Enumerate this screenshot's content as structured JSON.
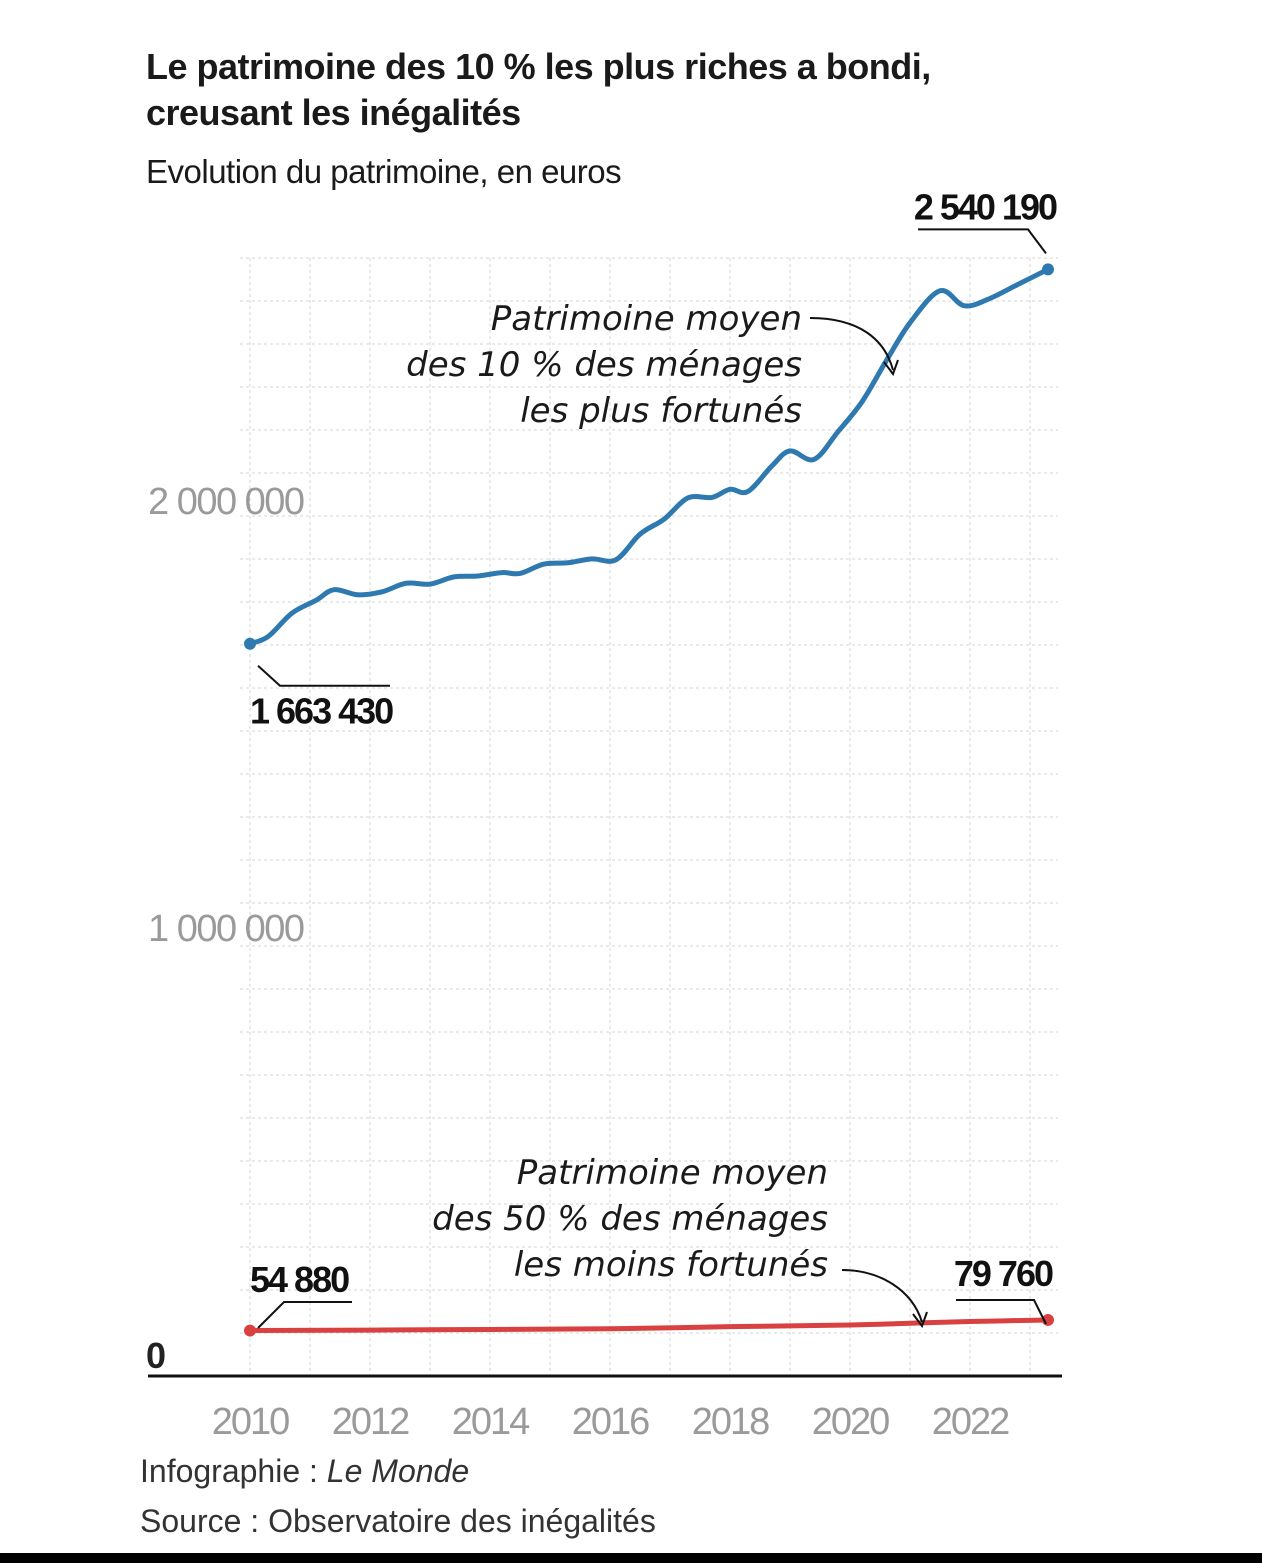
{
  "header": {
    "title_line1": "Le patrimoine des 10 % les plus riches a bondi,",
    "title_line2": "creusant les inégalités",
    "subtitle": "Evolution du patrimoine, en euros"
  },
  "footer": {
    "credit_prefix": "Infographie : ",
    "credit_name": "Le Monde",
    "source": "Source : Observatoire des inégalités"
  },
  "colors": {
    "top10": "#2e7ab0",
    "bottom50": "#d94141",
    "grid": "#d6d6d6",
    "axis_labels": "#9a9a9a"
  },
  "chart_data": {
    "type": "line",
    "title": "Le patrimoine des 10 % les plus riches a bondi, creusant les inégalités",
    "subtitle": "Evolution du patrimoine, en euros",
    "x_range": [
      2010,
      2023.3
    ],
    "y_range": [
      0,
      2700000
    ],
    "grid": true,
    "y_ticks": [
      {
        "value": 0,
        "label": "0"
      },
      {
        "value": 1000000,
        "label": "1 000 000"
      },
      {
        "value": 2000000,
        "label": "2 000 000"
      }
    ],
    "x_ticks": [
      {
        "value": 2010,
        "label": "2010"
      },
      {
        "value": 2012,
        "label": "2012"
      },
      {
        "value": 2014,
        "label": "2014"
      },
      {
        "value": 2016,
        "label": "2016"
      },
      {
        "value": 2018,
        "label": "2018"
      },
      {
        "value": 2020,
        "label": "2020"
      },
      {
        "value": 2022,
        "label": "2022"
      }
    ],
    "series": [
      {
        "id": "top10",
        "label_lines": [
          "Patrimoine moyen",
          "des 10 % des ménages",
          "les plus fortunés"
        ],
        "start_label": "1 663 430",
        "end_label": "2 540 190",
        "points": [
          [
            2010.0,
            1663430
          ],
          [
            2010.3,
            1680000
          ],
          [
            2010.7,
            1735000
          ],
          [
            2011.1,
            1765000
          ],
          [
            2011.4,
            1790000
          ],
          [
            2011.8,
            1778000
          ],
          [
            2012.2,
            1785000
          ],
          [
            2012.6,
            1805000
          ],
          [
            2013.0,
            1803000
          ],
          [
            2013.4,
            1820000
          ],
          [
            2013.8,
            1822000
          ],
          [
            2014.2,
            1830000
          ],
          [
            2014.5,
            1828000
          ],
          [
            2014.9,
            1850000
          ],
          [
            2015.3,
            1853000
          ],
          [
            2015.7,
            1862000
          ],
          [
            2016.1,
            1860000
          ],
          [
            2016.5,
            1920000
          ],
          [
            2016.9,
            1955000
          ],
          [
            2017.3,
            2005000
          ],
          [
            2017.7,
            2006000
          ],
          [
            2018.0,
            2025000
          ],
          [
            2018.3,
            2020000
          ],
          [
            2018.7,
            2080000
          ],
          [
            2019.0,
            2115000
          ],
          [
            2019.4,
            2095000
          ],
          [
            2019.8,
            2160000
          ],
          [
            2020.2,
            2230000
          ],
          [
            2020.6,
            2325000
          ],
          [
            2021.0,
            2415000
          ],
          [
            2021.5,
            2490000
          ],
          [
            2021.9,
            2455000
          ],
          [
            2022.3,
            2470000
          ],
          [
            2022.8,
            2505000
          ],
          [
            2023.3,
            2540190
          ]
        ]
      },
      {
        "id": "bottom50",
        "label_lines": [
          "Patrimoine moyen",
          "des 50 % des ménages",
          "les moins fortunés"
        ],
        "start_label": "54 880",
        "end_label": "79 760",
        "points": [
          [
            2010.0,
            54880
          ],
          [
            2012.0,
            56000
          ],
          [
            2014.0,
            57500
          ],
          [
            2016.0,
            59000
          ],
          [
            2018.0,
            64000
          ],
          [
            2020.0,
            68000
          ],
          [
            2021.0,
            72000
          ],
          [
            2022.0,
            76000
          ],
          [
            2023.3,
            79760
          ]
        ]
      }
    ]
  }
}
